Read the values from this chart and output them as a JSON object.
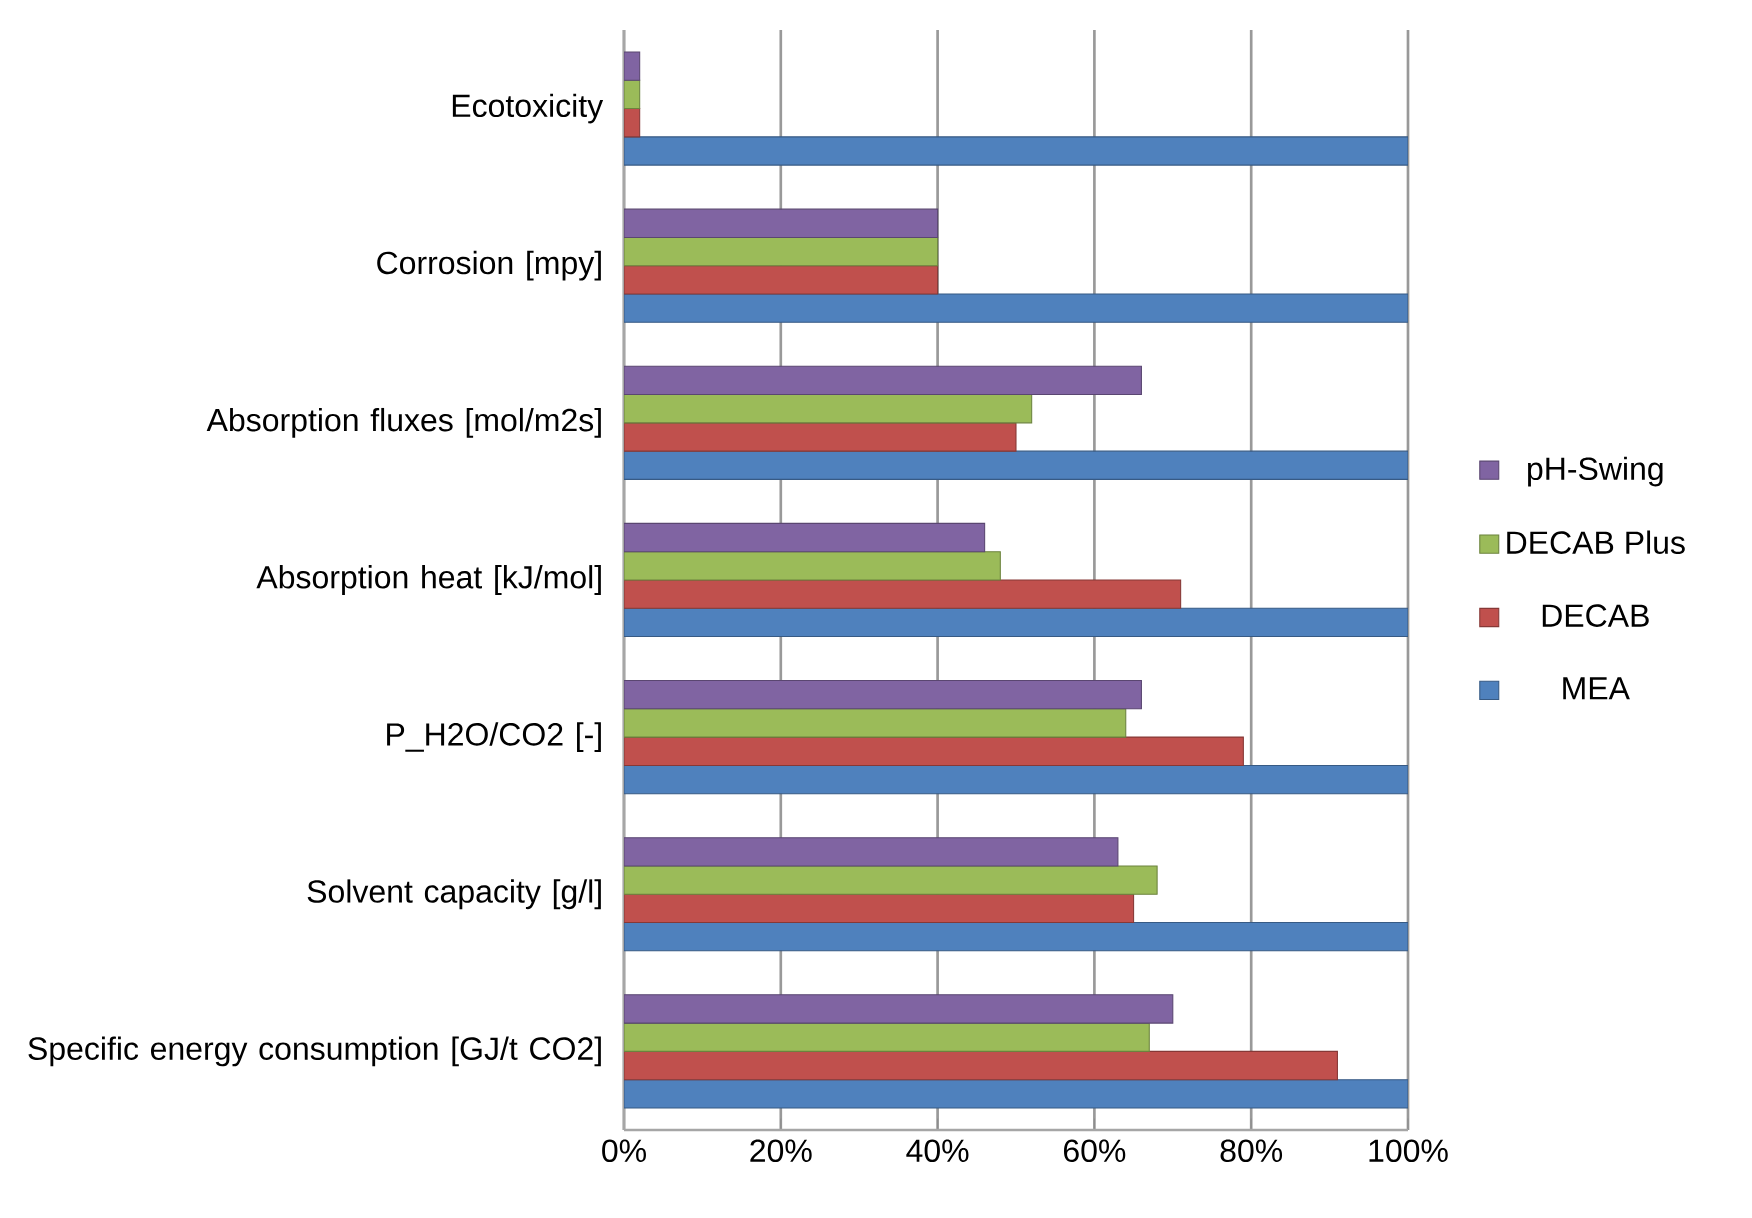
{
  "chart_data": {
    "type": "bar",
    "orientation": "horizontal",
    "categories": [
      "Ecotoxicity",
      "Corrosion [mpy]",
      "Absorption fluxes [mol/m2s]",
      "Absorption heat [kJ/mol]",
      "P_H2O/CO2 [-]",
      "Solvent capacity [g/l]",
      "Specific energy consumption [GJ/t CO2]"
    ],
    "series": [
      {
        "name": "MEA",
        "color": "#4f81bd",
        "values": [
          100,
          100,
          100,
          100,
          100,
          100,
          100
        ]
      },
      {
        "name": "DECAB",
        "color": "#c0504d",
        "values": [
          2,
          40,
          50,
          71,
          79,
          65,
          91
        ]
      },
      {
        "name": "DECAB Plus",
        "color": "#9bbb59",
        "values": [
          2,
          40,
          52,
          48,
          64,
          68,
          67
        ]
      },
      {
        "name": "pH-Swing",
        "color": "#8064a2",
        "values": [
          2,
          40,
          66,
          46,
          66,
          63,
          70
        ]
      }
    ],
    "xlim": [
      0,
      100
    ],
    "xticks": [
      {
        "value": 0,
        "label": "0%"
      },
      {
        "value": 20,
        "label": "20%"
      },
      {
        "value": 40,
        "label": "40%"
      },
      {
        "value": 60,
        "label": "60%"
      },
      {
        "value": 80,
        "label": "80%"
      },
      {
        "value": 100,
        "label": "100%"
      }
    ],
    "grid": "x",
    "legend": "right"
  }
}
